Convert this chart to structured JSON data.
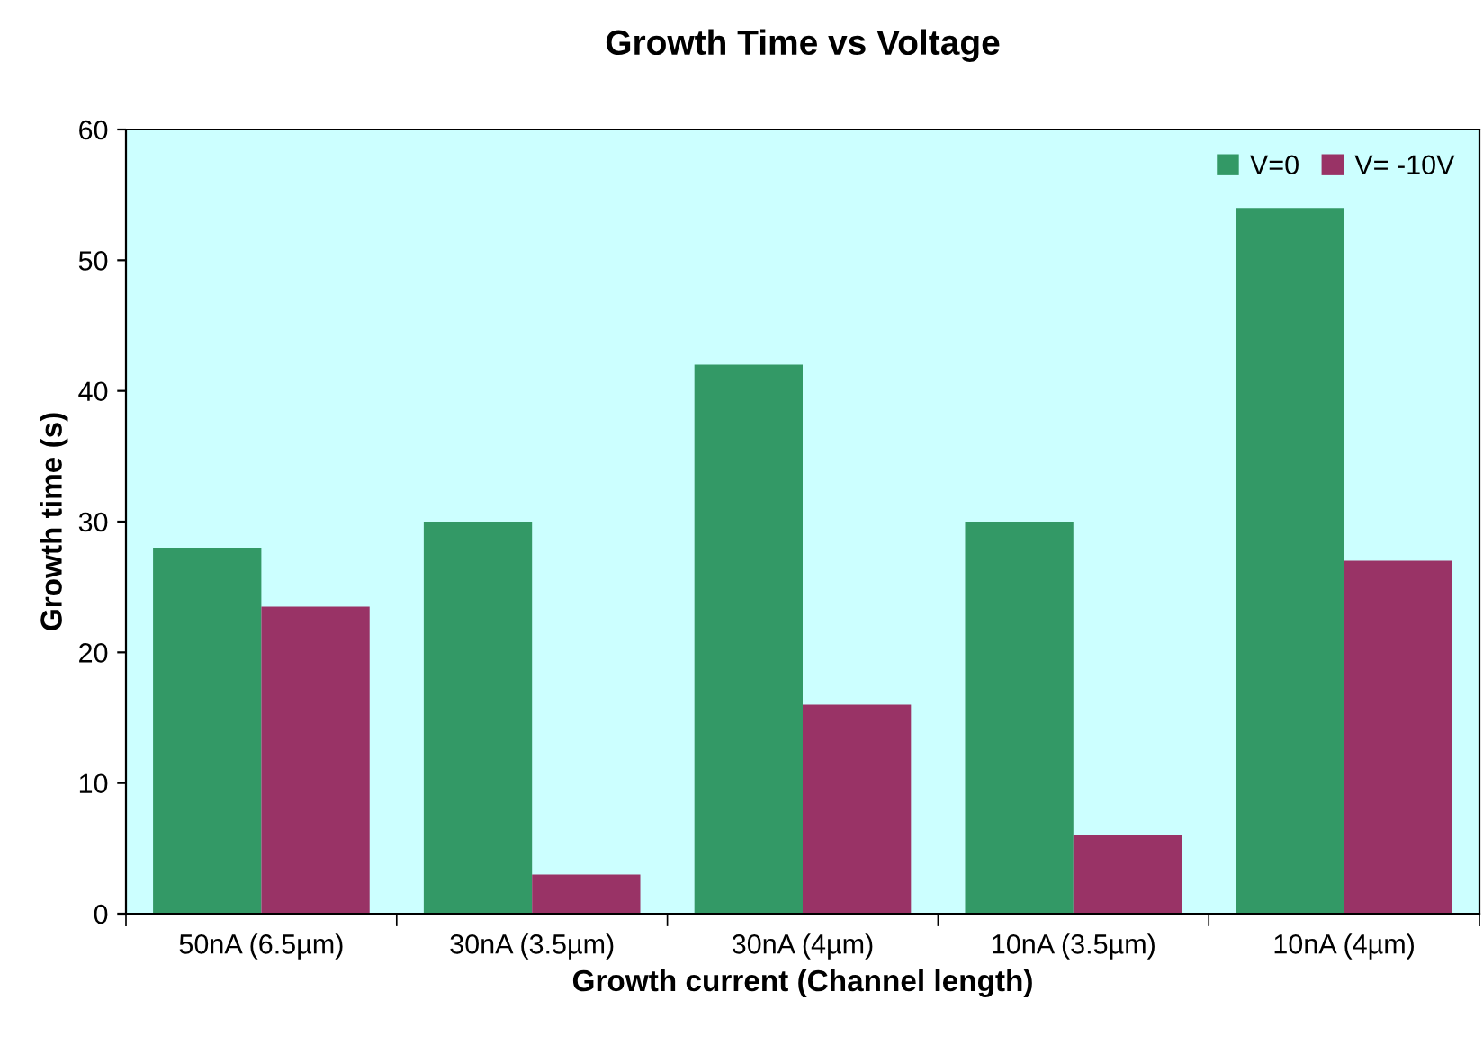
{
  "chart_data": {
    "type": "bar",
    "title": "Growth Time vs Voltage",
    "xlabel": "Growth current (Channel length)",
    "ylabel": "Growth time (s)",
    "categories": [
      "50nA (6.5µm)",
      "30nA (3.5µm)",
      "30nA (4µm)",
      "10nA (3.5µm)",
      "10nA (4µm)"
    ],
    "series": [
      {
        "name": "V=0",
        "color": "#339966",
        "values": [
          28,
          30,
          42,
          30,
          54
        ]
      },
      {
        "name": "V= -10V",
        "color": "#993366",
        "values": [
          23.5,
          3,
          16,
          6,
          27
        ]
      }
    ],
    "ylim": [
      0,
      60
    ],
    "yticks": [
      0,
      10,
      20,
      30,
      40,
      50,
      60
    ],
    "grid": false,
    "legend": "top right"
  }
}
